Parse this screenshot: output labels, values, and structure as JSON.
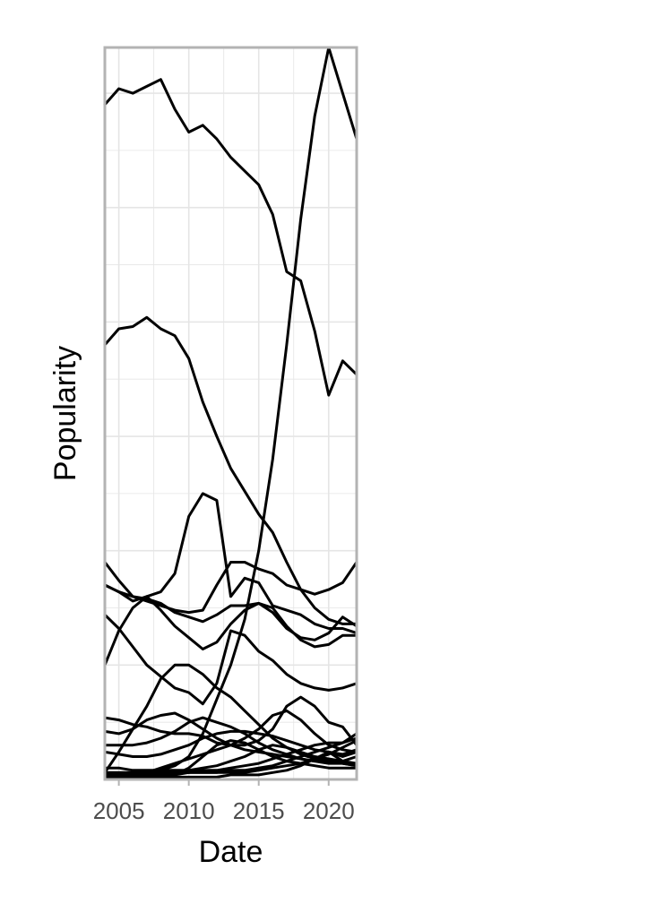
{
  "chart_data": {
    "type": "line",
    "title": "",
    "xlabel": "Date",
    "ylabel": "Popularity",
    "x_ticks": [
      2005,
      2010,
      2015,
      2020
    ],
    "xlim": [
      2004.0,
      2022.0
    ],
    "ylim": [
      0,
      32
    ],
    "grid": true,
    "legend": "none",
    "colors": {
      "line": "#000000",
      "grid": "#e5e5e5",
      "frame": "#b3b3b3",
      "background": "#ffffff"
    },
    "series": [
      {
        "x": [
          2004,
          2005,
          2006,
          2007,
          2008,
          2009,
          2010,
          2011,
          2012,
          2013,
          2014,
          2015,
          2016,
          2017,
          2018,
          2019,
          2020,
          2021,
          2022
        ],
        "values": [
          29.5,
          30.2,
          30.0,
          30.3,
          30.6,
          29.3,
          28.3,
          28.6,
          28.0,
          27.2,
          26.6,
          26.0,
          24.7,
          22.2,
          21.8,
          19.6,
          16.8,
          18.3,
          17.7
        ]
      },
      {
        "x": [
          2004,
          2005,
          2006,
          2007,
          2008,
          2009,
          2010,
          2011,
          2012,
          2013,
          2014,
          2015,
          2016,
          2017,
          2018,
          2019,
          2020,
          2021,
          2022
        ],
        "values": [
          19.0,
          19.7,
          19.8,
          20.2,
          19.7,
          19.4,
          18.4,
          16.5,
          15.0,
          13.6,
          12.6,
          11.6,
          10.8,
          9.5,
          8.3,
          7.5,
          7.0,
          6.8,
          6.8
        ]
      },
      {
        "x": [
          2004,
          2005,
          2006,
          2007,
          2008,
          2009,
          2010,
          2011,
          2012,
          2013,
          2014,
          2015,
          2016,
          2017,
          2018,
          2019,
          2020,
          2021,
          2022
        ],
        "values": [
          0.0,
          0.1,
          0.2,
          0.3,
          0.4,
          0.6,
          1.0,
          2.0,
          3.5,
          5.0,
          7.0,
          10.0,
          14.0,
          19.0,
          24.5,
          29.0,
          32.0,
          30.0,
          28.0
        ]
      },
      {
        "x": [
          2004,
          2005,
          2006,
          2007,
          2008,
          2009,
          2010,
          2011,
          2012,
          2013,
          2014,
          2015,
          2016,
          2017,
          2018,
          2019,
          2020,
          2021,
          2022
        ],
        "values": [
          8.5,
          8.2,
          7.8,
          8.0,
          8.2,
          9.0,
          11.5,
          12.5,
          12.2,
          8.0,
          8.8,
          8.6,
          7.6,
          7.4,
          7.2,
          6.8,
          6.6,
          6.6,
          6.4
        ]
      },
      {
        "x": [
          2004,
          2005,
          2006,
          2007,
          2008,
          2009,
          2010,
          2011,
          2012,
          2013,
          2014,
          2015,
          2016,
          2017,
          2018,
          2019,
          2020,
          2021,
          2022
        ],
        "values": [
          9.5,
          8.7,
          8.0,
          7.8,
          7.6,
          7.4,
          7.3,
          7.4,
          8.5,
          9.5,
          9.5,
          9.2,
          9.0,
          8.5,
          8.3,
          8.1,
          8.3,
          8.6,
          9.5
        ]
      },
      {
        "x": [
          2004,
          2005,
          2006,
          2007,
          2008,
          2009,
          2010,
          2011,
          2012,
          2013,
          2014,
          2015,
          2016,
          2017,
          2018,
          2019,
          2020,
          2021,
          2022
        ],
        "values": [
          8.5,
          8.2,
          8.0,
          7.9,
          7.7,
          7.3,
          7.1,
          6.9,
          7.2,
          7.6,
          7.6,
          7.7,
          7.3,
          6.6,
          6.2,
          6.1,
          6.4,
          7.1,
          6.7
        ]
      },
      {
        "x": [
          2004,
          2005,
          2006,
          2007,
          2008,
          2009,
          2010,
          2011,
          2012,
          2013,
          2014,
          2015,
          2016,
          2017,
          2018,
          2019,
          2020,
          2021,
          2022
        ],
        "values": [
          5.0,
          6.5,
          7.5,
          8.0,
          7.4,
          6.7,
          6.2,
          5.7,
          6.0,
          6.8,
          7.4,
          7.7,
          7.5,
          6.7,
          6.1,
          5.8,
          5.9,
          6.3,
          6.3
        ]
      },
      {
        "x": [
          2004,
          2005,
          2006,
          2007,
          2008,
          2009,
          2010,
          2011,
          2012,
          2013,
          2014,
          2015,
          2016,
          2017,
          2018,
          2019,
          2020,
          2021,
          2022
        ],
        "values": [
          7.2,
          6.6,
          5.8,
          5.0,
          4.5,
          4.0,
          3.8,
          3.3,
          4.2,
          6.5,
          6.3,
          5.6,
          5.2,
          4.6,
          4.2,
          4.0,
          3.9,
          4.0,
          4.2
        ]
      },
      {
        "x": [
          2004,
          2005,
          2006,
          2007,
          2008,
          2009,
          2010,
          2011,
          2012,
          2013,
          2014,
          2015,
          2016,
          2017,
          2018,
          2019,
          2020,
          2021,
          2022
        ],
        "values": [
          0.3,
          1.2,
          2.2,
          3.2,
          4.4,
          5.0,
          5.0,
          4.6,
          4.0,
          3.6,
          3.0,
          2.4,
          1.8,
          1.4,
          1.1,
          0.9,
          0.8,
          0.7,
          0.6
        ]
      },
      {
        "x": [
          2004,
          2005,
          2006,
          2007,
          2008,
          2009,
          2010,
          2011,
          2012,
          2013,
          2014,
          2015,
          2016,
          2017,
          2018,
          2019,
          2020,
          2021,
          2022
        ],
        "values": [
          2.7,
          2.6,
          2.4,
          2.3,
          2.1,
          2.0,
          2.0,
          1.9,
          1.6,
          1.5,
          1.5,
          1.7,
          2.2,
          3.2,
          3.6,
          3.2,
          2.5,
          2.3,
          1.5
        ]
      },
      {
        "x": [
          2004,
          2005,
          2006,
          2007,
          2008,
          2009,
          2010,
          2011,
          2012,
          2013,
          2014,
          2015,
          2016,
          2017,
          2018,
          2019,
          2020,
          2021,
          2022
        ],
        "values": [
          2.1,
          2.0,
          2.2,
          2.6,
          2.8,
          2.9,
          2.6,
          2.2,
          1.8,
          1.5,
          1.3,
          1.2,
          1.1,
          1.0,
          0.9,
          0.8,
          0.7,
          0.7,
          0.6
        ]
      },
      {
        "x": [
          2004,
          2005,
          2006,
          2007,
          2008,
          2009,
          2010,
          2011,
          2012,
          2013,
          2014,
          2015,
          2016,
          2017,
          2018,
          2019,
          2020,
          2021,
          2022
        ],
        "values": [
          1.5,
          1.5,
          1.5,
          1.6,
          1.8,
          2.1,
          2.5,
          2.7,
          2.5,
          2.3,
          2.0,
          1.6,
          1.3,
          1.1,
          0.9,
          0.8,
          1.2,
          0.8,
          0.7
        ]
      },
      {
        "x": [
          2004,
          2005,
          2006,
          2007,
          2008,
          2009,
          2010,
          2011,
          2012,
          2013,
          2014,
          2015,
          2016,
          2017,
          2018,
          2019,
          2020,
          2021,
          2022
        ],
        "values": [
          1.2,
          1.1,
          1.0,
          1.0,
          1.1,
          1.3,
          1.5,
          1.8,
          2.0,
          2.1,
          2.1,
          2.0,
          1.9,
          1.7,
          1.5,
          1.3,
          1.2,
          1.1,
          1.3
        ]
      },
      {
        "x": [
          2004,
          2005,
          2006,
          2007,
          2008,
          2009,
          2010,
          2011,
          2012,
          2013,
          2014,
          2015,
          2016,
          2017,
          2018,
          2019,
          2020,
          2021,
          2022
        ],
        "values": [
          0.1,
          0.1,
          0.2,
          0.3,
          0.5,
          0.7,
          0.9,
          1.1,
          1.3,
          1.5,
          1.8,
          2.2,
          2.8,
          3.0,
          2.6,
          2.0,
          1.5,
          1.3,
          1.2
        ]
      },
      {
        "x": [
          2004,
          2005,
          2006,
          2007,
          2008,
          2009,
          2010,
          2011,
          2012,
          2013,
          2014,
          2015,
          2016,
          2017,
          2018,
          2019,
          2020,
          2021,
          2022
        ],
        "values": [
          0.0,
          0.0,
          0.0,
          0.1,
          0.1,
          0.2,
          0.5,
          1.0,
          1.5,
          1.7,
          1.6,
          1.3,
          1.0,
          0.8,
          0.7,
          0.6,
          0.5,
          0.5,
          0.5
        ]
      },
      {
        "x": [
          2004,
          2005,
          2006,
          2007,
          2008,
          2009,
          2010,
          2011,
          2012,
          2013,
          2014,
          2015,
          2016,
          2017,
          2018,
          2019,
          2020,
          2021,
          2022
        ],
        "values": [
          0.5,
          0.5,
          0.4,
          0.4,
          0.4,
          0.4,
          0.4,
          0.5,
          0.6,
          0.8,
          1.0,
          1.3,
          1.5,
          1.4,
          1.2,
          1.0,
          0.9,
          0.8,
          1.0
        ]
      },
      {
        "x": [
          2004,
          2005,
          2006,
          2007,
          2008,
          2009,
          2010,
          2011,
          2012,
          2013,
          2014,
          2015,
          2016,
          2017,
          2018,
          2019,
          2020,
          2021,
          2022
        ],
        "values": [
          0.2,
          0.2,
          0.2,
          0.2,
          0.2,
          0.3,
          0.3,
          0.4,
          0.4,
          0.5,
          0.6,
          0.7,
          0.9,
          1.1,
          1.3,
          1.5,
          1.6,
          1.6,
          1.8
        ]
      },
      {
        "x": [
          2004,
          2005,
          2006,
          2007,
          2008,
          2009,
          2010,
          2011,
          2012,
          2013,
          2014,
          2015,
          2016,
          2017,
          2018,
          2019,
          2020,
          2021,
          2022
        ],
        "values": [
          0.1,
          0.1,
          0.1,
          0.2,
          0.2,
          0.2,
          0.3,
          0.3,
          0.3,
          0.4,
          0.4,
          0.5,
          0.6,
          0.8,
          1.0,
          1.2,
          1.4,
          1.6,
          2.0
        ]
      },
      {
        "x": [
          2004,
          2005,
          2006,
          2007,
          2008,
          2009,
          2010,
          2011,
          2012,
          2013,
          2014,
          2015,
          2016,
          2017,
          2018,
          2019,
          2020,
          2021,
          2022
        ],
        "values": [
          0.3,
          0.3,
          0.3,
          0.3,
          0.3,
          0.3,
          0.3,
          0.3,
          0.3,
          0.3,
          0.3,
          0.4,
          0.5,
          0.6,
          0.7,
          0.9,
          1.1,
          1.4,
          1.7
        ]
      },
      {
        "x": [
          2004,
          2005,
          2006,
          2007,
          2008,
          2009,
          2010,
          2011,
          2012,
          2013,
          2014,
          2015,
          2016,
          2017,
          2018,
          2019,
          2020,
          2021,
          2022
        ],
        "values": [
          0.0,
          0.0,
          0.0,
          0.0,
          0.0,
          0.1,
          0.1,
          0.1,
          0.1,
          0.2,
          0.2,
          0.2,
          0.3,
          0.4,
          0.6,
          0.9,
          1.2,
          1.0,
          1.2
        ]
      }
    ]
  }
}
